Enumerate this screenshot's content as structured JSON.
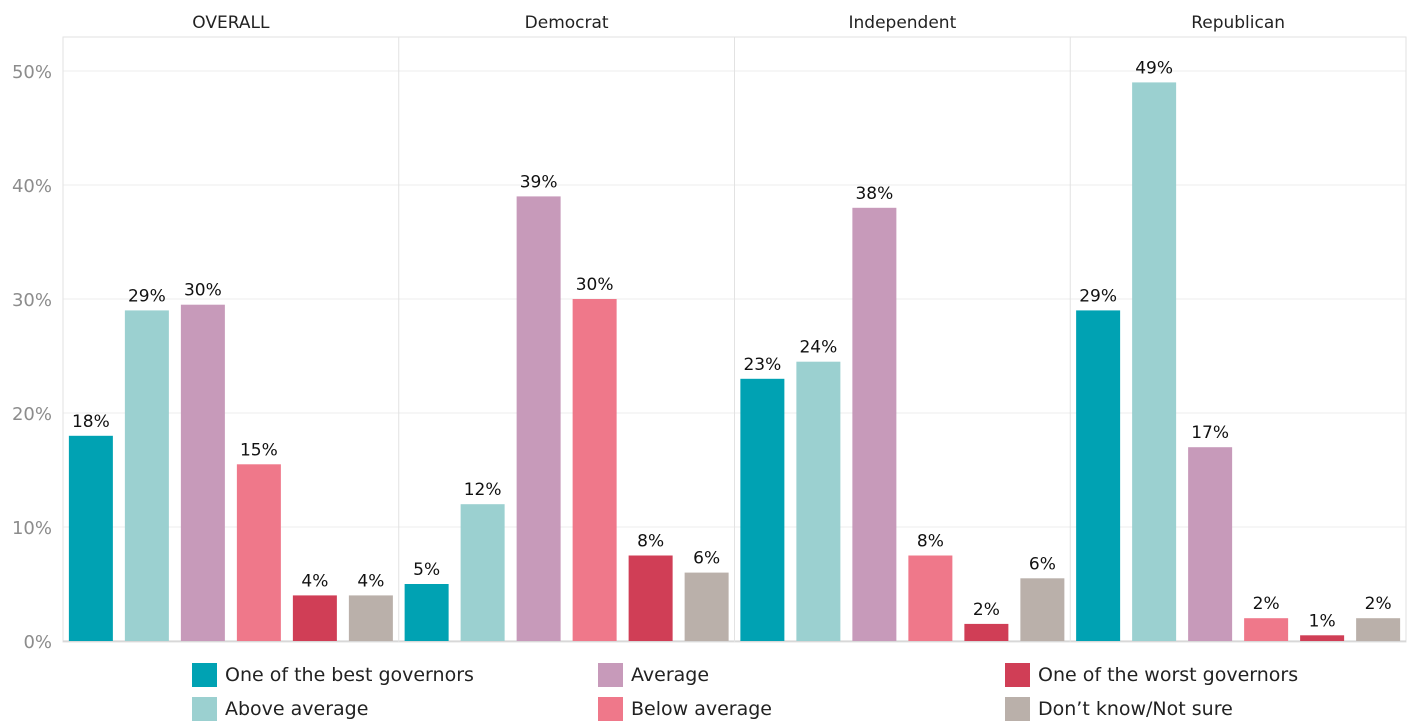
{
  "chart_data": {
    "type": "bar",
    "panels": [
      "OVERALL",
      "Democrat",
      "Independent",
      "Republican"
    ],
    "series": [
      {
        "name": "One of the best governors",
        "color": "#00a2b3",
        "values": [
          18,
          5,
          23,
          29
        ],
        "labels": [
          "18%",
          "5%",
          "23%",
          "29%"
        ]
      },
      {
        "name": "Above average",
        "color": "#9bd0d0",
        "values": [
          29,
          12,
          24.5,
          49
        ],
        "labels": [
          "29%",
          "12%",
          "24%",
          "49%"
        ]
      },
      {
        "name": "Average",
        "color": "#c79aba",
        "values": [
          29.5,
          39,
          38,
          17
        ],
        "labels": [
          "30%",
          "39%",
          "38%",
          "17%"
        ]
      },
      {
        "name": "Below average",
        "color": "#ef788a",
        "values": [
          15.5,
          30,
          7.5,
          2
        ],
        "labels": [
          "15%",
          "30%",
          "8%",
          "2%"
        ]
      },
      {
        "name": "One of the worst governors",
        "color": "#d03e56",
        "values": [
          4,
          7.5,
          1.5,
          0.5
        ],
        "labels": [
          "4%",
          "8%",
          "2%",
          "1%"
        ]
      },
      {
        "name": "Don’t know/Not sure",
        "color": "#bab0aa",
        "values": [
          4,
          6,
          5.5,
          2
        ],
        "labels": [
          "4%",
          "6%",
          "6%",
          "2%"
        ]
      }
    ],
    "y_ticks": [
      "0%",
      "10%",
      "20%",
      "30%",
      "40%",
      "50%"
    ],
    "y_tick_values": [
      0,
      10,
      20,
      30,
      40,
      50
    ],
    "ylim": [
      0,
      52
    ],
    "grid": true,
    "legend_position": "bottom"
  },
  "legend": [
    {
      "label": "One of the best governors",
      "color": "#00a2b3"
    },
    {
      "label": "Above average",
      "color": "#9bd0d0"
    },
    {
      "label": "Average",
      "color": "#c79aba"
    },
    {
      "label": "Below average",
      "color": "#ef788a"
    },
    {
      "label": "One of the worst governors",
      "color": "#d03e56"
    },
    {
      "label": "Don’t know/Not sure",
      "color": "#bab0aa"
    }
  ]
}
